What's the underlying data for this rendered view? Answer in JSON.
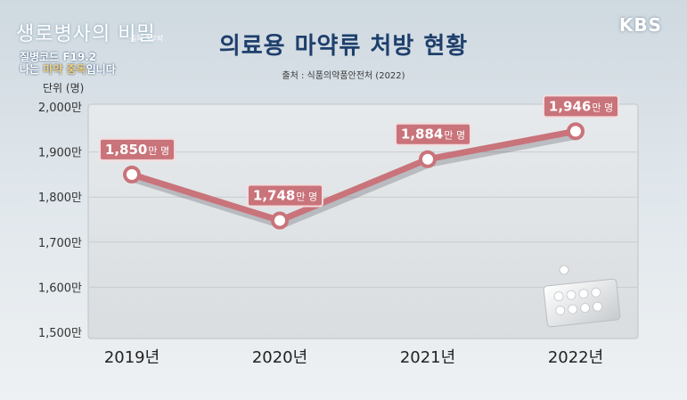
{
  "program": {
    "title": "생로병사의 비밀",
    "episode": "중독 3부작",
    "line1": "질병코드 F19.2",
    "line2_pre": "나는 ",
    "line2_hl": "마약 중독",
    "line2_post": "입니다"
  },
  "broadcaster": "KBS",
  "colors": {
    "line": "#c9737a",
    "label_bg": "#c9737a",
    "label_border": "#f3dcdd",
    "title": "#1e3f6c"
  },
  "chart_data": {
    "type": "line",
    "title": "의료용 마약류 처방 현황",
    "subtitle": "출처 : 식품의약품안전처 (2022)",
    "unit_label": "단위 (명)",
    "categories": [
      "2019년",
      "2020년",
      "2021년",
      "2022년"
    ],
    "values": [
      1850,
      1748,
      1884,
      1946
    ],
    "data_labels": [
      {
        "num": "1,850",
        "unit": "만 명"
      },
      {
        "num": "1,748",
        "unit": "만 명"
      },
      {
        "num": "1,884",
        "unit": "만 명"
      },
      {
        "num": "1,946",
        "unit": "만 명"
      }
    ],
    "ylim": [
      1500,
      2000
    ],
    "yticks": [
      2000,
      1900,
      1800,
      1700,
      1600,
      1500
    ],
    "ytick_labels": [
      "2,000만",
      "1,900만",
      "1,800만",
      "1,700만",
      "1,600만",
      "1,500만"
    ],
    "grid": true,
    "legend": "none"
  }
}
